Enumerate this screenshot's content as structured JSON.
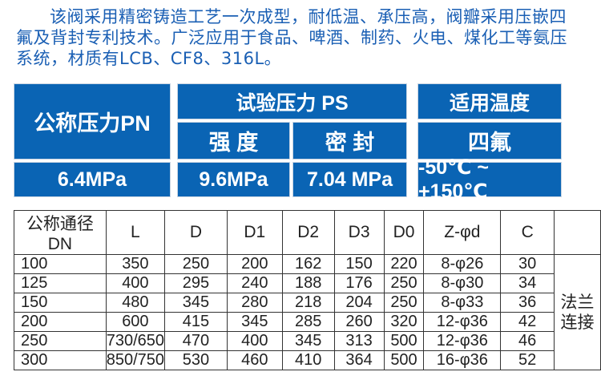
{
  "intro": {
    "line1": "该阀采用精密铸造工艺一次成型，耐低温、承压高，阀瓣采用压嵌四",
    "line2": "氟及背封专利技术。广泛应用于食品、啤酒、制药、火电、煤化工等氨压",
    "line3": "系统，材质有LCB、CF8、316L。"
  },
  "specs": {
    "nominal_pressure": {
      "label": "公称压力PN",
      "value": "6.4MPa"
    },
    "test_pressure": {
      "label": "试验压力 PS",
      "strength": {
        "label": "强 度",
        "value": "9.6MPa"
      },
      "seal": {
        "label": "密 封",
        "value": "7.04 MPa"
      }
    },
    "temperature": {
      "label": "适用温度",
      "sub": "四氟",
      "value": "-50℃ ~ +150℃"
    }
  },
  "colors": {
    "box_blue": "#0a64b4",
    "text_blue": "#1a5fb4"
  },
  "table": {
    "headers": [
      "公称通径DN",
      "L",
      "D",
      "D1",
      "D2",
      "D3",
      "D0",
      "Z-φd",
      "C"
    ],
    "rows": [
      [
        "100",
        "350",
        "250",
        "200",
        "162",
        "150",
        "220",
        "8-φ26",
        "30"
      ],
      [
        "125",
        "400",
        "295",
        "240",
        "188",
        "176",
        "250",
        "8-φ30",
        "34"
      ],
      [
        "150",
        "480",
        "345",
        "280",
        "218",
        "204",
        "250",
        "8-φ33",
        "36"
      ],
      [
        "200",
        "600",
        "415",
        "345",
        "285",
        "260",
        "320",
        "12-φ36",
        "42"
      ],
      [
        "250",
        "730/650",
        "470",
        "400",
        "345",
        "313",
        "500",
        "12-φ36",
        "46"
      ],
      [
        "300",
        "850/750",
        "530",
        "460",
        "410",
        "364",
        "500",
        "16-φ36",
        "52"
      ]
    ],
    "side_label_1": "法兰",
    "side_label_2": "连接"
  }
}
